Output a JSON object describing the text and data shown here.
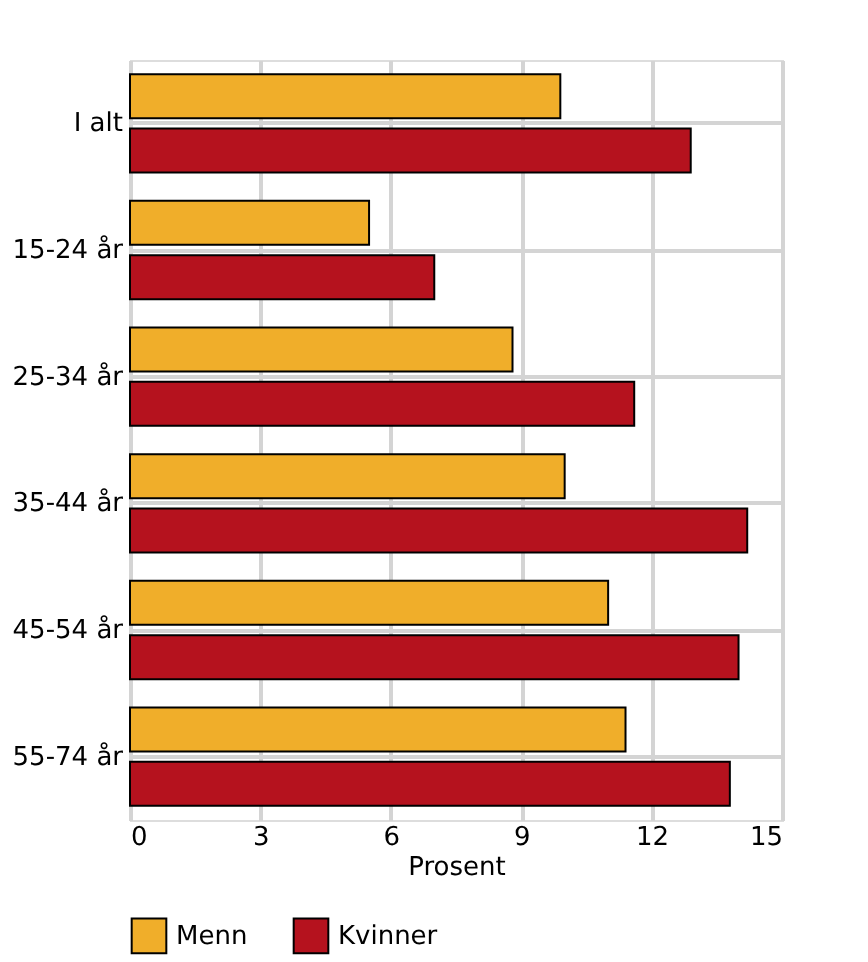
{
  "chart_data": {
    "type": "bar",
    "orientation": "horizontal",
    "xlabel": "Prosent",
    "categories": [
      "I alt",
      "15-24 år",
      "25-34 år",
      "35-44 år",
      "45-54 år",
      "55-74 år"
    ],
    "series": [
      {
        "name": "Menn",
        "color": "#f0ae2a",
        "values": [
          9.9,
          5.5,
          8.8,
          10.0,
          11.0,
          11.4
        ]
      },
      {
        "name": "Kvinner",
        "color": "#b5121e",
        "values": [
          12.9,
          7.0,
          11.6,
          14.2,
          14.0,
          13.8
        ]
      }
    ],
    "xlim": [
      0,
      15
    ],
    "xticks": [
      0,
      3,
      6,
      9,
      12,
      15
    ],
    "grid": true,
    "legend": "bottom"
  }
}
